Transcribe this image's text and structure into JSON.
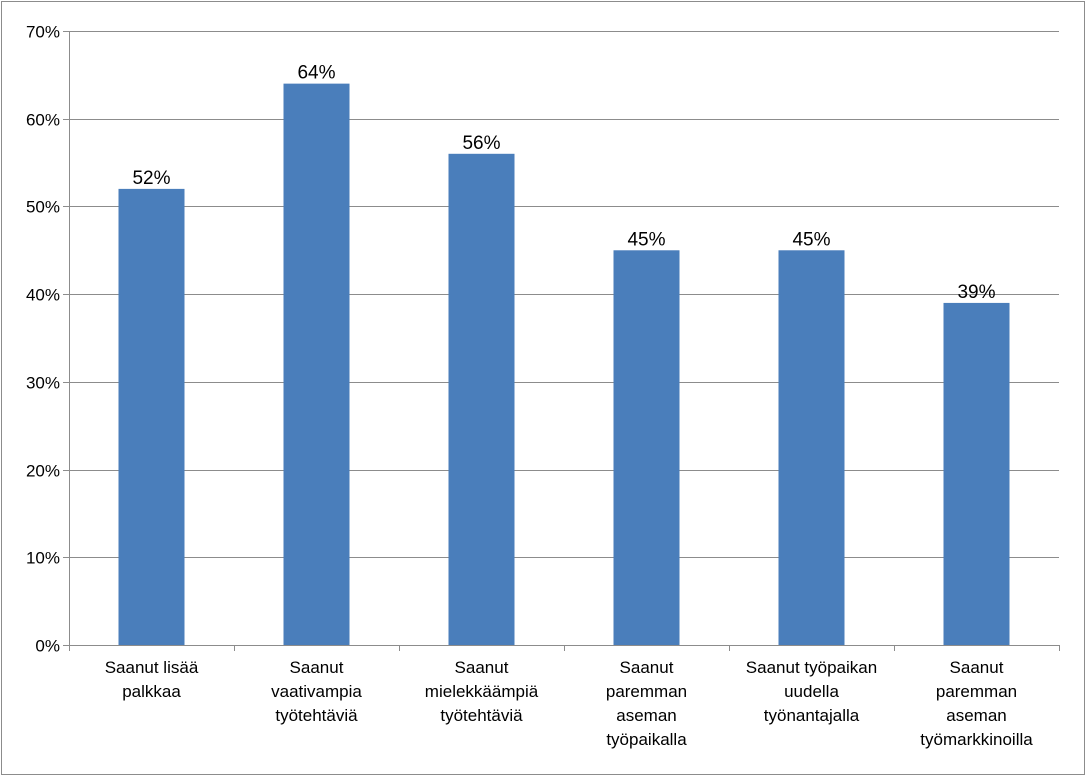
{
  "chart_data": {
    "type": "bar",
    "categories": [
      [
        "Saanut lisää",
        "palkkaa"
      ],
      [
        "Saanut",
        "vaativampia",
        "työtehtäviä"
      ],
      [
        "Saanut",
        "mielekkäämpiä",
        "työtehtäviä"
      ],
      [
        "Saanut",
        "paremman",
        "aseman",
        "työpaikalla"
      ],
      [
        "Saanut työpaikan",
        "uudella",
        "työnantajalla"
      ],
      [
        "Saanut",
        "paremman",
        "aseman",
        "työmarkkinoilla"
      ]
    ],
    "values": [
      52,
      64,
      56,
      45,
      45,
      39
    ],
    "data_labels": [
      "52%",
      "64%",
      "56%",
      "45%",
      "45%",
      "39%"
    ],
    "ylim": [
      0,
      70
    ],
    "yticks": [
      0,
      10,
      20,
      30,
      40,
      50,
      60,
      70
    ],
    "ytick_labels": [
      "0%",
      "10%",
      "20%",
      "30%",
      "40%",
      "50%",
      "60%",
      "70%"
    ],
    "grid": true,
    "legend": "none",
    "bar_color": "#4a7ebb",
    "title": "",
    "xlabel": "",
    "ylabel": ""
  }
}
